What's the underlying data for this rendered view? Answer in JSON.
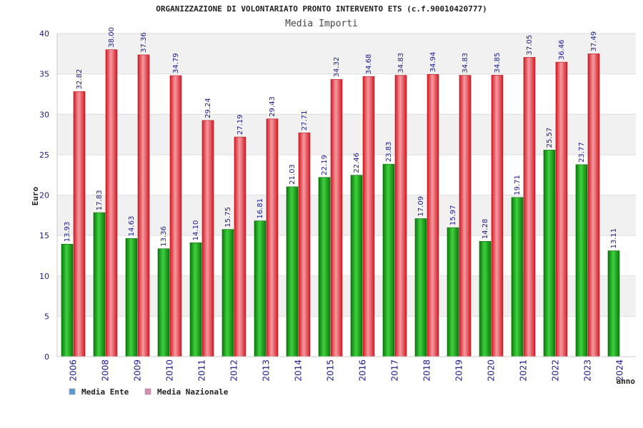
{
  "chart_data": {
    "type": "bar",
    "title": "ORGANIZZAZIONE DI VOLONTARIATO PRONTO INTERVENTO ETS (c.f.90010420777)",
    "subtitle": "Media Importi",
    "xlabel": "anno",
    "ylabel": "Euro",
    "ylim": [
      0,
      40
    ],
    "yticks": [
      0,
      5,
      10,
      15,
      20,
      25,
      30,
      35,
      40
    ],
    "grid": true,
    "legend_position": "bottom-left",
    "categories": [
      "2006",
      "2008",
      "2009",
      "2010",
      "2011",
      "2012",
      "2013",
      "2014",
      "2015",
      "2016",
      "2017",
      "2018",
      "2019",
      "2020",
      "2021",
      "2022",
      "2023",
      "2024"
    ],
    "series": [
      {
        "name": "Media Ente",
        "legend_color": "#5b9bd5",
        "bar_color": "#11a811",
        "values": [
          13.93,
          17.83,
          14.63,
          13.36,
          14.1,
          15.75,
          16.81,
          21.03,
          22.19,
          22.46,
          23.83,
          17.09,
          15.97,
          14.28,
          19.71,
          25.57,
          23.77,
          13.11
        ],
        "labels": [
          "13.93",
          "17.83",
          "14.63",
          "13.36",
          "14.10",
          "15.75",
          "16.81",
          "21.03",
          "22.19",
          "22.46",
          "23.83",
          "17.09",
          "15.97",
          "14.28",
          "19.71",
          "25.57",
          "23.77",
          "13.11"
        ]
      },
      {
        "name": "Media Nazionale",
        "legend_color": "#d98cb3",
        "bar_color": "#e8333d",
        "values": [
          32.82,
          38.0,
          37.36,
          34.79,
          29.24,
          27.19,
          29.43,
          27.71,
          34.32,
          34.68,
          34.83,
          34.94,
          34.83,
          34.85,
          37.05,
          36.46,
          37.49,
          null
        ],
        "labels": [
          "32.82",
          "38.00",
          "37.36",
          "34.79",
          "29.24",
          "27.19",
          "29.43",
          "27.71",
          "34.32",
          "34.68",
          "34.83",
          "34.94",
          "34.83",
          "34.85",
          "37.05",
          "36.46",
          "37.49",
          ""
        ]
      }
    ]
  }
}
